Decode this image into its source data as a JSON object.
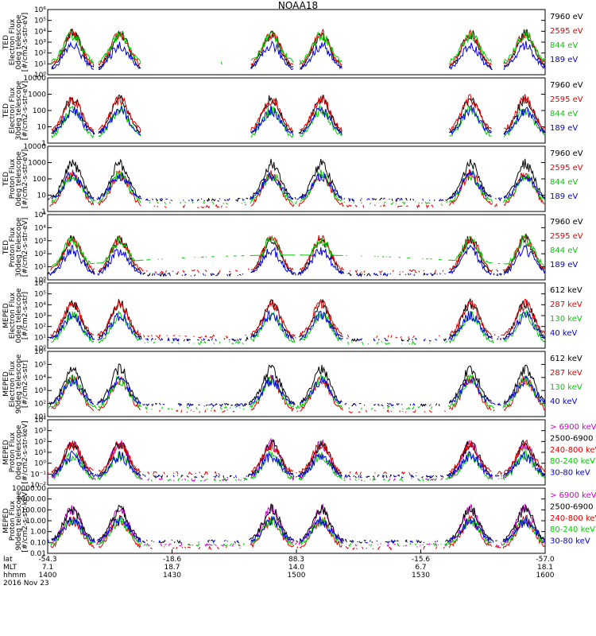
{
  "title": "NOAA18",
  "colors": {
    "black": "#000000",
    "red": "#e00000",
    "green": "#00cc00",
    "blue": "#0000dd",
    "magenta": "#cc00cc"
  },
  "chart_data": [
    {
      "type": "line",
      "ylabel": [
        "TED",
        "Electron Flux",
        "0deg telescope",
        "[#/cm2-s-str-eV]"
      ],
      "yscale": "log",
      "ylim": [
        1,
        1000000
      ],
      "yticks": [
        "10⁰",
        "10¹",
        "10²",
        "10³",
        "10⁴",
        "10⁵",
        "10⁶"
      ],
      "series": [
        {
          "name": "7960 eV",
          "color": "#000000"
        },
        {
          "name": "2595 eV",
          "color": "#e00000"
        },
        {
          "name": "844 eV",
          "color": "#00cc00"
        },
        {
          "name": "189 eV",
          "color": "#0000dd"
        }
      ]
    },
    {
      "type": "line",
      "ylabel": [
        "TED",
        "Electron Flux",
        "30deg telescope",
        "[#/cm2-s-str-eV]"
      ],
      "yscale": "log",
      "ylim": [
        1,
        10000
      ],
      "yticks": [
        "1",
        "10",
        "100",
        "1000",
        "10000"
      ],
      "series": [
        {
          "name": "7960 eV",
          "color": "#000000"
        },
        {
          "name": "2595 eV",
          "color": "#e00000"
        },
        {
          "name": "844 eV",
          "color": "#00cc00"
        },
        {
          "name": "189 eV",
          "color": "#0000dd"
        }
      ]
    },
    {
      "type": "line",
      "ylabel": [
        "TED",
        "Proton Flux",
        "0deg telescope",
        "[#/cm2-s-str-eV]"
      ],
      "yscale": "log",
      "ylim": [
        1,
        10000
      ],
      "yticks": [
        "1",
        "10",
        "100",
        "1000",
        "10000"
      ],
      "series": [
        {
          "name": "7960 eV",
          "color": "#000000"
        },
        {
          "name": "2595 eV",
          "color": "#e00000"
        },
        {
          "name": "844 eV",
          "color": "#00cc00"
        },
        {
          "name": "189 eV",
          "color": "#0000dd"
        }
      ]
    },
    {
      "type": "line",
      "ylabel": [
        "TED",
        "Proton Flux",
        "30deg telescope",
        "[#/cm2-s-str-eV]"
      ],
      "yscale": "log",
      "ylim": [
        1,
        100000
      ],
      "yticks": [
        "10⁰",
        "10¹",
        "10²",
        "10³",
        "10⁴",
        "10⁵"
      ],
      "series": [
        {
          "name": "7960 eV",
          "color": "#000000"
        },
        {
          "name": "2595 eV",
          "color": "#e00000"
        },
        {
          "name": "844 eV",
          "color": "#00cc00"
        },
        {
          "name": "189 eV",
          "color": "#0000dd"
        }
      ]
    },
    {
      "type": "line",
      "ylabel": [
        "MEPED",
        "Electron Flux",
        "0deg telescope",
        "[#/cm2-s-str]"
      ],
      "yscale": "log",
      "ylim": [
        1,
        1000000
      ],
      "yticks": [
        "10⁰",
        "10¹",
        "10²",
        "10³",
        "10⁴",
        "10⁵",
        "10⁶"
      ],
      "series": [
        {
          "name": "612 keV",
          "color": "#000000"
        },
        {
          "name": "287 keV",
          "color": "#e00000"
        },
        {
          "name": "130 keV",
          "color": "#00cc00"
        },
        {
          "name": "40 keV",
          "color": "#0000dd"
        }
      ]
    },
    {
      "type": "line",
      "ylabel": [
        "MEPED",
        "Electron Flux",
        "90deg telescope",
        "[#/cm2-s-str]"
      ],
      "yscale": "log",
      "ylim": [
        10,
        1000000
      ],
      "yticks": [
        "10¹",
        "10²",
        "10³",
        "10⁴",
        "10⁵",
        "10⁶"
      ],
      "series": [
        {
          "name": "612 keV",
          "color": "#000000"
        },
        {
          "name": "287 keV",
          "color": "#e00000"
        },
        {
          "name": "130 keV",
          "color": "#00cc00"
        },
        {
          "name": "40 keV",
          "color": "#0000dd"
        }
      ]
    },
    {
      "type": "line",
      "ylabel": [
        "MEPED",
        "Proton Flux",
        "0deg telescope",
        "[#/cm2-s-str-keV]"
      ],
      "yscale": "log",
      "ylim": [
        0.01,
        10000
      ],
      "yticks": [
        "10⁻²",
        "10⁻¹",
        "10⁰",
        "10¹",
        "10²",
        "10³",
        "10⁴"
      ],
      "series": [
        {
          "name": "> 6900 keV",
          "color": "#cc00cc"
        },
        {
          "name": "2500-6900",
          "color": "#000000"
        },
        {
          "name": "240-800 keV",
          "color": "#e00000"
        },
        {
          "name": "80-240 keV",
          "color": "#00cc00"
        },
        {
          "name": "30-80 keV",
          "color": "#0000dd"
        }
      ]
    },
    {
      "type": "line",
      "ylabel": [
        "MEPED",
        "Proton Flux",
        "90deg telescope",
        "[#/cm2-s-str-keV]"
      ],
      "yscale": "log",
      "ylim": [
        0.01,
        10000
      ],
      "yticks": [
        "0.01",
        "0.10",
        "1.00",
        "10.00",
        "100.00",
        "1000.00",
        "10000.00"
      ],
      "series": [
        {
          "name": "> 6900 keV",
          "color": "#cc00cc"
        },
        {
          "name": "2500-6900",
          "color": "#000000"
        },
        {
          "name": "240-800 keV",
          "color": "#e00000"
        },
        {
          "name": "80-240 keV",
          "color": "#00cc00"
        },
        {
          "name": "30-80 keV",
          "color": "#0000dd"
        }
      ]
    }
  ],
  "x_axis": {
    "rows": [
      {
        "label": "lat",
        "values": [
          "-54.3",
          "-18.6",
          "88.3",
          "-15.6",
          "-57.0"
        ]
      },
      {
        "label": "MLT",
        "values": [
          "7.1",
          "18.7",
          "14.0",
          "6.7",
          "18.1"
        ]
      },
      {
        "label": "hhmm",
        "values": [
          "1400",
          "1430",
          "1500",
          "1530",
          "1600"
        ]
      }
    ],
    "date": "2016 Nov 23"
  }
}
